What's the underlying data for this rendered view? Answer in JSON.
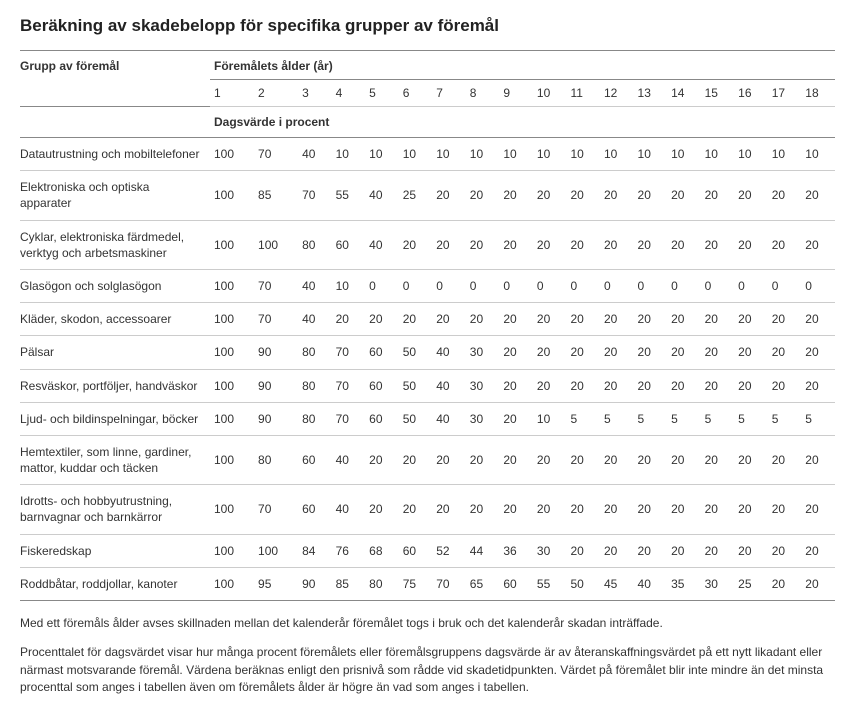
{
  "title": "Beräkning av skadebelopp för specifika grupper av föremål",
  "colors": {
    "text": "#333333",
    "border_heavy": "#888888",
    "border_light": "#cccccc",
    "background": "#ffffff"
  },
  "table": {
    "header_group_label": "Grupp av föremål",
    "header_age_label": "Föremålets ålder (år)",
    "subheader_label": "Dagsvärde i procent",
    "ages": [
      "1",
      "2",
      "3",
      "4",
      "5",
      "6",
      "7",
      "8",
      "9",
      "10",
      "11",
      "12",
      "13",
      "14",
      "15",
      "16",
      "17",
      "18"
    ],
    "rows": [
      {
        "label": "Datautrustning och mobiltelefoner",
        "values": [
          100,
          70,
          40,
          10,
          10,
          10,
          10,
          10,
          10,
          10,
          10,
          10,
          10,
          10,
          10,
          10,
          10,
          10
        ]
      },
      {
        "label": "Elektroniska och optiska apparater",
        "values": [
          100,
          85,
          70,
          55,
          40,
          25,
          20,
          20,
          20,
          20,
          20,
          20,
          20,
          20,
          20,
          20,
          20,
          20
        ]
      },
      {
        "label": "Cyklar, elektroniska färdmedel, verktyg och arbetsmaskiner",
        "values": [
          100,
          100,
          80,
          60,
          40,
          20,
          20,
          20,
          20,
          20,
          20,
          20,
          20,
          20,
          20,
          20,
          20,
          20
        ]
      },
      {
        "label": "Glasögon och solglasögon",
        "values": [
          100,
          70,
          40,
          10,
          0,
          0,
          0,
          0,
          0,
          0,
          0,
          0,
          0,
          0,
          0,
          0,
          0,
          0
        ]
      },
      {
        "label": "Kläder, skodon, accessoarer",
        "values": [
          100,
          70,
          40,
          20,
          20,
          20,
          20,
          20,
          20,
          20,
          20,
          20,
          20,
          20,
          20,
          20,
          20,
          20
        ]
      },
      {
        "label": "Pälsar",
        "values": [
          100,
          90,
          80,
          70,
          60,
          50,
          40,
          30,
          20,
          20,
          20,
          20,
          20,
          20,
          20,
          20,
          20,
          20
        ]
      },
      {
        "label": "Resväskor, portföljer, handväskor",
        "values": [
          100,
          90,
          80,
          70,
          60,
          50,
          40,
          30,
          20,
          20,
          20,
          20,
          20,
          20,
          20,
          20,
          20,
          20
        ]
      },
      {
        "label": "Ljud- och bildinspelningar, böcker",
        "values": [
          100,
          90,
          80,
          70,
          60,
          50,
          40,
          30,
          20,
          10,
          5,
          5,
          5,
          5,
          5,
          5,
          5,
          5
        ]
      },
      {
        "label": "Hemtextiler, som linne, gardiner, mattor, kuddar och täcken",
        "values": [
          100,
          80,
          60,
          40,
          20,
          20,
          20,
          20,
          20,
          20,
          20,
          20,
          20,
          20,
          20,
          20,
          20,
          20
        ]
      },
      {
        "label": "Idrotts- och hobbyutrustning, barnvagnar och barnkärror",
        "values": [
          100,
          70,
          60,
          40,
          20,
          20,
          20,
          20,
          20,
          20,
          20,
          20,
          20,
          20,
          20,
          20,
          20,
          20
        ]
      },
      {
        "label": "Fiskeredskap",
        "values": [
          100,
          100,
          84,
          76,
          68,
          60,
          52,
          44,
          36,
          30,
          20,
          20,
          20,
          20,
          20,
          20,
          20,
          20
        ]
      },
      {
        "label": "Roddbåtar, roddjollar, kanoter",
        "values": [
          100,
          95,
          90,
          85,
          80,
          75,
          70,
          65,
          60,
          55,
          50,
          45,
          40,
          35,
          30,
          25,
          20,
          20
        ]
      }
    ]
  },
  "footnotes": [
    "Med ett föremåls ålder avses skillnaden mellan det kalenderår föremålet togs i bruk och det kalenderår skadan inträffade.",
    "Procenttalet för dagsvärdet visar hur många procent föremålets eller föremålsgruppens dagsvärde är av återanskaffningsvärdet på ett nytt likadant eller närmast motsvarande föremål. Värdena beräknas enligt den prisnivå som rådde vid skadetidpunkten. Värdet på föremålet blir inte mindre än det minsta procenttal som anges i tabellen även om föremålets ålder är högre än vad som anges i tabellen."
  ]
}
